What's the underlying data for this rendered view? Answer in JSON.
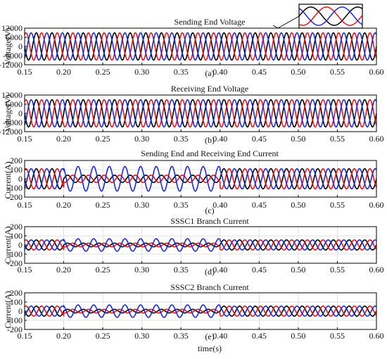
{
  "colors": {
    "phase_a": "#000000",
    "phase_b": "#e8141c",
    "phase_c": "#1a2bd6",
    "grid": "#d9d9d9",
    "axes": "#000000"
  },
  "xlabel": "time(s)",
  "chart_data": [
    {
      "id": "a",
      "type": "line",
      "title": "Sending End Voltage",
      "ylabel": "Voltage(V)",
      "caption": "(a)",
      "xlim": [
        0.15,
        0.6
      ],
      "ylim": [
        -12000,
        12000
      ],
      "xticks": [
        "0.15",
        "0.20",
        "0.25",
        "0.30",
        "0.35",
        "0.40",
        "0.45",
        "0.50",
        "0.55",
        "0.60"
      ],
      "yticks": [
        "12000",
        "6000",
        "0",
        "-6000",
        "-12000"
      ],
      "yticks_values": [
        12000,
        6000,
        0,
        -6000,
        -12000
      ],
      "grid": true,
      "frequency_hz": 50,
      "series": [
        {
          "color_key": "phase_a",
          "phase_deg": 0,
          "segments": [
            {
              "t0": 0.15,
              "t1": 0.6,
              "amplitude": 8900
            }
          ]
        },
        {
          "color_key": "phase_b",
          "phase_deg": -120,
          "segments": [
            {
              "t0": 0.15,
              "t1": 0.6,
              "amplitude": 8900
            }
          ]
        },
        {
          "color_key": "phase_c",
          "phase_deg": 120,
          "segments": [
            {
              "t0": 0.15,
              "t1": 0.6,
              "amplitude": 8900
            }
          ]
        }
      ],
      "inset": true
    },
    {
      "id": "b",
      "type": "line",
      "title": "Receiving End Voltage",
      "ylabel": "Voltage(V)",
      "caption": "(b)",
      "xlim": [
        0.15,
        0.6
      ],
      "ylim": [
        -12000,
        12000
      ],
      "xticks": [
        "0.15",
        "0.20",
        "0.25",
        "0.30",
        "0.35",
        "0.40",
        "0.45",
        "0.50",
        "0.55",
        "0.60"
      ],
      "yticks": [
        "12000",
        "6000",
        "0",
        "-6000",
        "-12000"
      ],
      "yticks_values": [
        12000,
        6000,
        0,
        -6000,
        -12000
      ],
      "grid": true,
      "frequency_hz": 50,
      "series": [
        {
          "color_key": "phase_a",
          "phase_deg": 0,
          "segments": [
            {
              "t0": 0.15,
              "t1": 0.6,
              "amplitude": 8900
            }
          ]
        },
        {
          "color_key": "phase_b",
          "phase_deg": -120,
          "segments": [
            {
              "t0": 0.15,
              "t1": 0.6,
              "amplitude": 8900
            }
          ]
        },
        {
          "color_key": "phase_c",
          "phase_deg": 120,
          "segments": [
            {
              "t0": 0.15,
              "t1": 0.6,
              "amplitude": 8900
            }
          ]
        }
      ]
    },
    {
      "id": "c",
      "type": "line",
      "title": "Sending End and Receiving End Current",
      "ylabel": "Current(A)",
      "caption": "(c)",
      "xlim": [
        0.15,
        0.6
      ],
      "ylim": [
        -200,
        200
      ],
      "xticks": [
        "0.15",
        "0.20",
        "0.25",
        "0.30",
        "0.35",
        "0.40",
        "0.45",
        "0.50",
        "0.55",
        "0.60"
      ],
      "yticks": [
        "200",
        "100",
        "0",
        "-100",
        "-200"
      ],
      "yticks_values": [
        200,
        100,
        0,
        -100,
        -200
      ],
      "grid": true,
      "frequency_hz": 50,
      "series": [
        {
          "color_key": "phase_a",
          "phase_deg": 0,
          "segments": [
            {
              "t0": 0.15,
              "t1": 0.2,
              "amplitude": 110
            },
            {
              "t0": 0.2,
              "t1": 0.4,
              "amplitude": 40
            },
            {
              "t0": 0.4,
              "t1": 0.6,
              "amplitude": 110
            }
          ]
        },
        {
          "color_key": "phase_b",
          "phase_deg": -120,
          "segments": [
            {
              "t0": 0.15,
              "t1": 0.2,
              "amplitude": 110
            },
            {
              "t0": 0.2,
              "t1": 0.4,
              "amplitude": 40
            },
            {
              "t0": 0.4,
              "t1": 0.6,
              "amplitude": 110
            }
          ]
        },
        {
          "color_key": "phase_c",
          "phase_deg": 120,
          "segments": [
            {
              "t0": 0.15,
              "t1": 0.2,
              "amplitude": 110
            },
            {
              "t0": 0.2,
              "t1": 0.4,
              "amplitude": 135
            },
            {
              "t0": 0.4,
              "t1": 0.6,
              "amplitude": 110
            }
          ]
        }
      ]
    },
    {
      "id": "d",
      "type": "line",
      "title": "SSSC1 Branch Current",
      "ylabel": "Current(A)",
      "caption": "(d)",
      "xlim": [
        0.15,
        0.6
      ],
      "ylim": [
        -200,
        200
      ],
      "xticks": [
        "0.15",
        "0.20",
        "0.25",
        "0.30",
        "0.35",
        "0.40",
        "0.45",
        "0.50",
        "0.55",
        "0.60"
      ],
      "yticks": [
        "200",
        "100",
        "0",
        "-100",
        "-200"
      ],
      "yticks_values": [
        200,
        100,
        0,
        -100,
        -200
      ],
      "grid": true,
      "frequency_hz": 50,
      "series": [
        {
          "color_key": "phase_a",
          "phase_deg": 0,
          "segments": [
            {
              "t0": 0.15,
              "t1": 0.2,
              "amplitude": 55
            },
            {
              "t0": 0.2,
              "t1": 0.4,
              "amplitude": 20
            },
            {
              "t0": 0.4,
              "t1": 0.6,
              "amplitude": 55
            }
          ]
        },
        {
          "color_key": "phase_b",
          "phase_deg": -120,
          "segments": [
            {
              "t0": 0.15,
              "t1": 0.2,
              "amplitude": 55
            },
            {
              "t0": 0.2,
              "t1": 0.4,
              "amplitude": 20
            },
            {
              "t0": 0.4,
              "t1": 0.6,
              "amplitude": 55
            }
          ]
        },
        {
          "color_key": "phase_c",
          "phase_deg": 120,
          "segments": [
            {
              "t0": 0.15,
              "t1": 0.2,
              "amplitude": 55
            },
            {
              "t0": 0.2,
              "t1": 0.4,
              "amplitude": 68
            },
            {
              "t0": 0.4,
              "t1": 0.6,
              "amplitude": 55
            }
          ]
        }
      ]
    },
    {
      "id": "e",
      "type": "line",
      "title": "SSSC2 Branch Current",
      "ylabel": "Current(A)",
      "caption": "(e)",
      "xlim": [
        0.15,
        0.6
      ],
      "ylim": [
        -200,
        200
      ],
      "xticks": [
        "0.15",
        "0.20",
        "0.25",
        "0.30",
        "0.35",
        "0.40",
        "0.45",
        "0.50",
        "0.55",
        "0.60"
      ],
      "yticks": [
        "200",
        "100",
        "0",
        "-100",
        "-200"
      ],
      "yticks_values": [
        200,
        100,
        0,
        -100,
        -200
      ],
      "grid": true,
      "frequency_hz": 50,
      "series": [
        {
          "color_key": "phase_a",
          "phase_deg": 0,
          "segments": [
            {
              "t0": 0.15,
              "t1": 0.2,
              "amplitude": 55
            },
            {
              "t0": 0.2,
              "t1": 0.4,
              "amplitude": 20
            },
            {
              "t0": 0.4,
              "t1": 0.6,
              "amplitude": 55
            }
          ]
        },
        {
          "color_key": "phase_b",
          "phase_deg": -120,
          "segments": [
            {
              "t0": 0.15,
              "t1": 0.2,
              "amplitude": 55
            },
            {
              "t0": 0.2,
              "t1": 0.4,
              "amplitude": 20
            },
            {
              "t0": 0.4,
              "t1": 0.6,
              "amplitude": 55
            }
          ]
        },
        {
          "color_key": "phase_c",
          "phase_deg": 120,
          "segments": [
            {
              "t0": 0.15,
              "t1": 0.2,
              "amplitude": 55
            },
            {
              "t0": 0.2,
              "t1": 0.4,
              "amplitude": 68
            },
            {
              "t0": 0.4,
              "t1": 0.6,
              "amplitude": 55
            }
          ]
        }
      ]
    }
  ]
}
